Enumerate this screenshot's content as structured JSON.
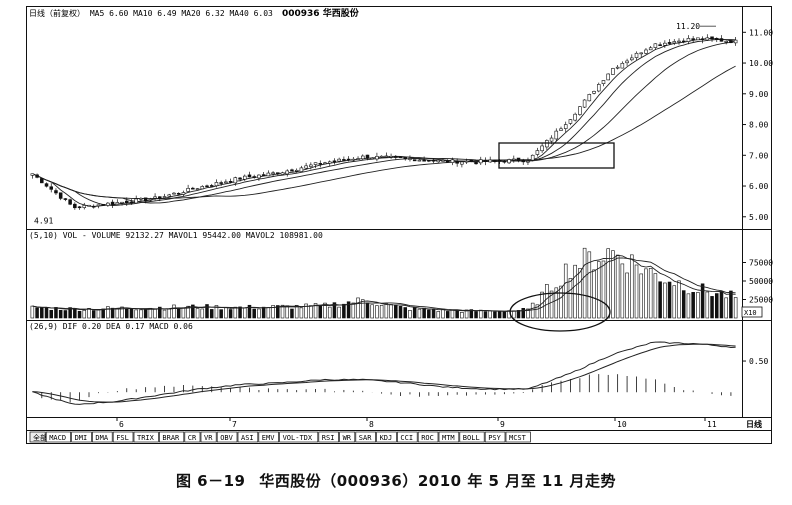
{
  "header": {
    "price_bar": "日线（前复权） MA5 6.60 MA10 6.49 MA20 6.32 MA40 6.03",
    "stock": "000936 华西股份",
    "volume_bar": "(5,10) VOL - VOLUME 92132.27 MAVOL1 95442.00 MAVOL2 108981.00",
    "macd_bar": "(26,9) DIF 0.20 DEA 0.17 MACD 0.06"
  },
  "caption": {
    "figure": "图 6－19",
    "title": "华西股份（000936）2010 年 5 月至 11 月走势"
  },
  "tabs": [
    "全部",
    "MACD",
    "DMI",
    "DMA",
    "FSL",
    "TRIX",
    "BRAR",
    "CR",
    "VR",
    "OBV",
    "ASI",
    "EMV",
    "VOL-TDX",
    "RSI",
    "WR",
    "SAR",
    "KDJ",
    "CCI",
    "ROC",
    "MTM",
    "BOLL",
    "PSY",
    "MCST"
  ],
  "period_label": "日线",
  "colors": {
    "up": "#ffffff",
    "down": "#111111",
    "line": "#222222"
  },
  "chart_data": [
    {
      "type": "candlestick",
      "panel": "price",
      "y_ticks": [
        5.0,
        6.0,
        7.0,
        8.0,
        9.0,
        10.0,
        11.0
      ],
      "ylim": [
        4.7,
        11.4
      ],
      "x_month_labels": [
        "6",
        "7",
        "8",
        "9",
        "10",
        "11"
      ],
      "annotations": [
        {
          "text": "4.91",
          "value": 4.91
        },
        {
          "text": "11.20",
          "value": 11.2
        }
      ],
      "close_anchors": [
        6.4,
        5.3,
        5.45,
        5.6,
        5.95,
        6.25,
        6.45,
        6.75,
        6.95,
        6.9,
        6.8,
        6.8,
        6.85,
        8.2,
        9.8,
        10.6,
        10.8,
        10.7
      ],
      "ma_series": [
        {
          "name": "MA5",
          "value": 6.6
        },
        {
          "name": "MA10",
          "value": 6.49
        },
        {
          "name": "MA20",
          "value": 6.32
        },
        {
          "name": "MA40",
          "value": 6.03
        }
      ]
    },
    {
      "type": "bar",
      "panel": "volume",
      "y_ticks": [
        25000,
        50000,
        75000
      ],
      "y_tick_labels": [
        "25000",
        "50000",
        "75000"
      ],
      "unit_label": "X10",
      "ylim": [
        0,
        100000
      ],
      "volume_anchors": [
        14000,
        12000,
        13000,
        14000,
        15000,
        14000,
        15000,
        16000,
        24000,
        13000,
        10000,
        9000,
        11000,
        70000,
        90000,
        60000,
        40000,
        28000
      ],
      "series": [
        {
          "name": "VOLUME",
          "value": 92132.27
        },
        {
          "name": "MAVOL1",
          "value": 95442.0
        },
        {
          "name": "MAVOL2",
          "value": 108981.0
        }
      ]
    },
    {
      "type": "line",
      "panel": "macd",
      "y_ticks": [
        0.5
      ],
      "y_tick_labels": [
        "0.50"
      ],
      "ylim": [
        -0.35,
        0.95
      ],
      "dif_anchors": [
        0.0,
        -0.2,
        -0.15,
        -0.05,
        0.05,
        0.12,
        0.15,
        0.2,
        0.2,
        0.15,
        0.08,
        0.05,
        0.05,
        0.3,
        0.6,
        0.8,
        0.78,
        0.72
      ],
      "series": [
        {
          "name": "DIF",
          "value": 0.2
        },
        {
          "name": "DEA",
          "value": 0.17
        },
        {
          "name": "MACD",
          "value": 0.06
        }
      ]
    }
  ]
}
